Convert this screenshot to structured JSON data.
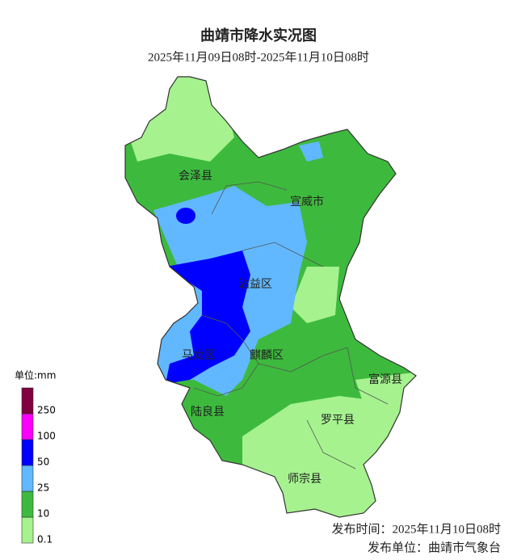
{
  "header": {
    "title": "曲靖市降水实况图",
    "subtitle": "2025年11月09日08时-2025年11月10日08时"
  },
  "districts": [
    {
      "label": "会泽县"
    },
    {
      "label": "宣威市"
    },
    {
      "label": "沾益区"
    },
    {
      "label": "马龙区"
    },
    {
      "label": "麒麟区"
    },
    {
      "label": "富源县"
    },
    {
      "label": "陆良县"
    },
    {
      "label": "罗平县"
    },
    {
      "label": "师宗县"
    }
  ],
  "legend": {
    "title": "单位:mm",
    "levels": [
      {
        "label": "0.1",
        "color": "#a6f28f"
      },
      {
        "label": "10",
        "color": "#3dba3d"
      },
      {
        "label": "25",
        "color": "#61b8ff"
      },
      {
        "label": "50",
        "color": "#0000fe"
      },
      {
        "label": "100",
        "color": "#fa00fa"
      },
      {
        "label": "250",
        "color": "#800040"
      }
    ]
  },
  "footer": {
    "publish_time": "发布时间：2025年11月10日08时",
    "publisher": "发布单位：曲靖市气象台"
  }
}
